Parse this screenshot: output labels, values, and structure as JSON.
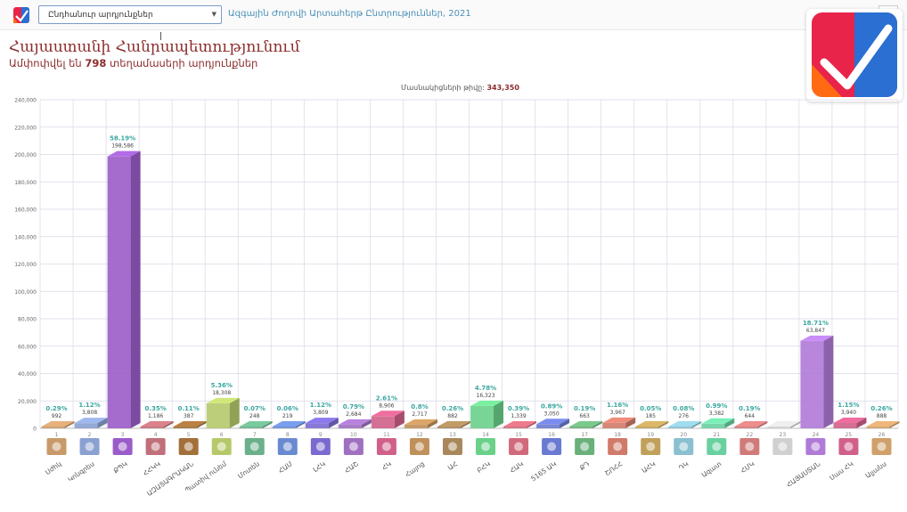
{
  "header": {
    "dropdown_value": "Ընդհանուր արդյունքներ",
    "election_title": "Ազգային Ժողովի Արտահերթ Ընտրություններ, 2021"
  },
  "page": {
    "title": "Հայաստանի Հանրապետությունում",
    "subtitle_prefix": "Ամփոփվել են ",
    "subtitle_count": "798",
    "subtitle_suffix": " տեղամասերի արդյունքներ",
    "voters_label": "Մասնակիցների թիվը:",
    "voters_count": "343,350"
  },
  "colors": {
    "brand_red": "#e8244a",
    "brand_blue": "#2a6fd1",
    "brand_orange": "#ff6a13",
    "title": "#8b2d2d",
    "percent_label": "#3aa7a0",
    "grid": "#d8d8e6"
  },
  "chart_data": {
    "type": "bar",
    "ylim": [
      0,
      240000
    ],
    "yticks": [
      "0",
      "20,000",
      "40,000",
      "60,000",
      "80,000",
      "100,000",
      "120,000",
      "140,000",
      "160,000",
      "180,000",
      "200,000",
      "220,000",
      "240,000"
    ],
    "ytick_values": [
      0,
      20000,
      40000,
      60000,
      80000,
      100000,
      120000,
      140000,
      160000,
      180000,
      200000,
      220000,
      240000
    ],
    "grid": true,
    "bars": [
      {
        "num": "1",
        "name": "Սժհկ",
        "value": 992,
        "value_label": "992",
        "percent": "0.29%",
        "color": "#c89a6a"
      },
      {
        "num": "2",
        "name": "Կոնգրես",
        "value": 3808,
        "value_label": "3,808",
        "percent": "1.12%",
        "color": "#8aa0d0"
      },
      {
        "num": "3",
        "name": "ՔՊԿ",
        "value": 198586,
        "value_label": "198,586",
        "percent": "58.19%",
        "color": "#9b5cc9"
      },
      {
        "num": "4",
        "name": "ՀՀԿԿ",
        "value": 1186,
        "value_label": "1,186",
        "percent": "0.35%",
        "color": "#c0707a"
      },
      {
        "num": "5",
        "name": "ԱԶԱՏԱԳՐԱԿԱՆ",
        "value": 387,
        "value_label": "387",
        "percent": "0.11%",
        "color": "#a3703a"
      },
      {
        "num": "6",
        "name": "Պատիվ ունեմ",
        "value": 18308,
        "value_label": "18,308",
        "percent": "5.36%",
        "color": "#b5c96a"
      },
      {
        "num": "7",
        "name": "Մոտեն",
        "value": 248,
        "value_label": "248",
        "percent": "0.07%",
        "color": "#6ab08a"
      },
      {
        "num": "8",
        "name": "ՀԱՄ",
        "value": 219,
        "value_label": "219",
        "percent": "0.06%",
        "color": "#6a8ad0"
      },
      {
        "num": "9",
        "name": "ԼՀԿ",
        "value": 3809,
        "value_label": "3,809",
        "percent": "1.12%",
        "color": "#7a6ad0"
      },
      {
        "num": "10",
        "name": "ՀԱՇ",
        "value": 2684,
        "value_label": "2,684",
        "percent": "0.79%",
        "color": "#a070c0"
      },
      {
        "num": "11",
        "name": "ՀԿ",
        "value": 8906,
        "value_label": "8,906",
        "percent": "2.61%",
        "color": "#d0608a"
      },
      {
        "num": "12",
        "name": "Հայոց",
        "value": 2717,
        "value_label": "2,717",
        "percent": "0.8%",
        "color": "#c0905a"
      },
      {
        "num": "13",
        "name": "ԱՀ",
        "value": 882,
        "value_label": "882",
        "percent": "0.26%",
        "color": "#a8885a"
      },
      {
        "num": "14",
        "name": "ԲՀԿ",
        "value": 16323,
        "value_label": "16,323",
        "percent": "4.78%",
        "color": "#6ad08a"
      },
      {
        "num": "15",
        "name": "ՀԱԿ",
        "value": 1339,
        "value_label": "1,339",
        "percent": "0.39%",
        "color": "#d06a7a"
      },
      {
        "num": "16",
        "name": "5165 ԱԿ",
        "value": 3050,
        "value_label": "3,050",
        "percent": "0.89%",
        "color": "#6a7ad0"
      },
      {
        "num": "17",
        "name": "ՔԴ",
        "value": 663,
        "value_label": "663",
        "percent": "0.19%",
        "color": "#6ab07a"
      },
      {
        "num": "18",
        "name": "ՇՈՀՀ",
        "value": 3967,
        "value_label": "3,967",
        "percent": "1.16%",
        "color": "#d07a6a"
      },
      {
        "num": "19",
        "name": "ԱՀԿ",
        "value": 185,
        "value_label": "185",
        "percent": "0.05%",
        "color": "#c0a05a"
      },
      {
        "num": "20",
        "name": "ԴԿ",
        "value": 276,
        "value_label": "276",
        "percent": "0.08%",
        "color": "#8ac0d0"
      },
      {
        "num": "21",
        "name": "Ազատ",
        "value": 3382,
        "value_label": "3,382",
        "percent": "0.99%",
        "color": "#6ad0a0"
      },
      {
        "num": "22",
        "name": "ՀՄԿ",
        "value": 644,
        "value_label": "644",
        "percent": "0.19%",
        "color": "#d07a7a"
      },
      {
        "num": "23",
        "name": "",
        "value": 0,
        "value_label": "",
        "percent": "",
        "color": "#d0d0d0"
      },
      {
        "num": "24",
        "name": "ՀԱՅԱՍՏԱՆ",
        "value": 63847,
        "value_label": "63,847",
        "percent": "18.71%",
        "color": "#b07ad8"
      },
      {
        "num": "25",
        "name": "Սաս ՀԿ",
        "value": 3940,
        "value_label": "3,940",
        "percent": "1.15%",
        "color": "#d0608a"
      },
      {
        "num": "26",
        "name": "Ալյանս",
        "value": 888,
        "value_label": "888",
        "percent": "0.26%",
        "color": "#d0a06a"
      }
    ]
  }
}
